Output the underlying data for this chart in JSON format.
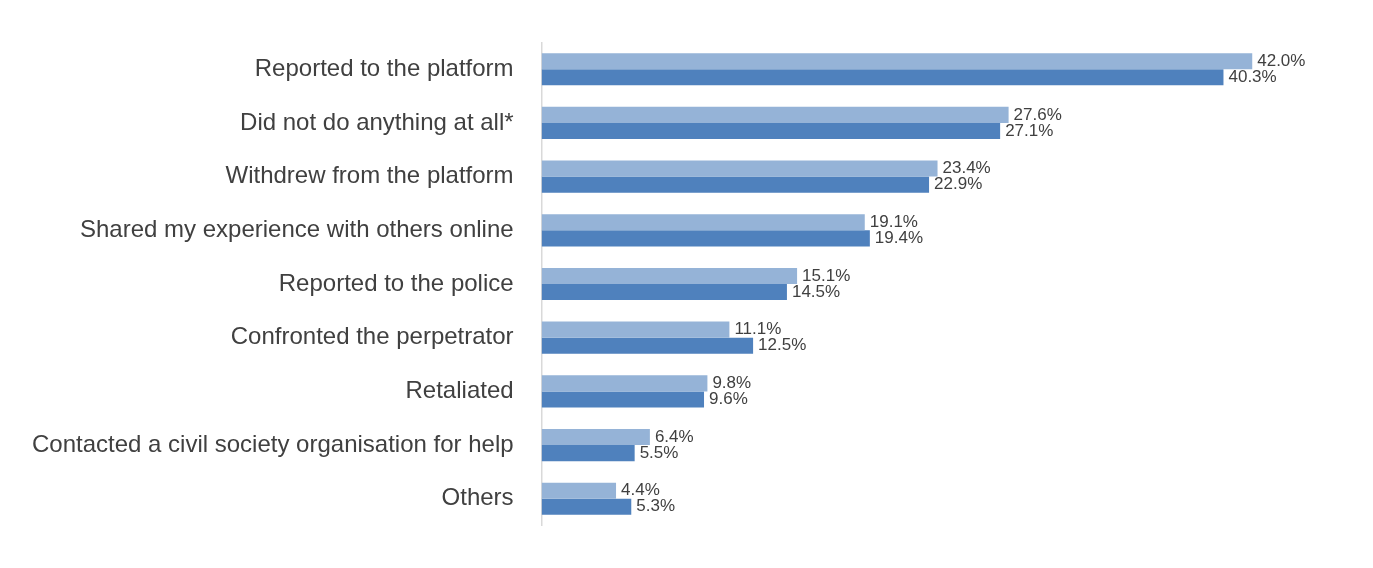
{
  "chart_data": {
    "type": "bar",
    "orientation": "horizontal",
    "categories": [
      "Reported to the platform",
      "Did not do anything at all*",
      "Withdrew from the platform",
      "Shared my experience with others online",
      "Reported to the police",
      "Confronted the perpetrator",
      "Retaliated",
      "Contacted a civil society organisation for help",
      "Others"
    ],
    "series": [
      {
        "color": "#95b3d7",
        "values": [
          42.0,
          27.6,
          23.4,
          19.1,
          15.1,
          11.1,
          9.8,
          6.4,
          4.4
        ],
        "value_labels": [
          "42.0%",
          "27.6%",
          "23.4%",
          "19.1%",
          "15.1%",
          "11.1%",
          "9.8%",
          "6.4%",
          "4.4%"
        ]
      },
      {
        "color": "#4f81bd",
        "values": [
          40.3,
          27.1,
          22.9,
          19.4,
          14.5,
          12.5,
          9.6,
          5.5,
          5.3
        ],
        "value_labels": [
          "40.3%",
          "27.1%",
          "22.9%",
          "19.4%",
          "14.5%",
          "12.5%",
          "9.6%",
          "5.5%",
          "5.3%"
        ]
      }
    ],
    "tick_labels": "y",
    "grid": false,
    "legend": false
  }
}
